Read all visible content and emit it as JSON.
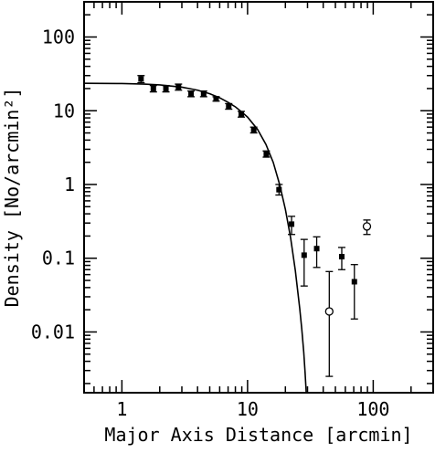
{
  "chart_data": {
    "type": "scatter",
    "title": "",
    "xlabel": "Major Axis Distance [arcmin]",
    "ylabel": "Density [No/arcmin²]",
    "xscale": "log",
    "yscale": "log",
    "xlim": [
      0.5,
      300
    ],
    "ylim": [
      0.0015,
      300
    ],
    "x_ticks": [
      1,
      10,
      100
    ],
    "x_tick_labels": [
      "1",
      "10",
      "100"
    ],
    "y_ticks": [
      100,
      10,
      1,
      0.1,
      0.01
    ],
    "y_tick_labels": [
      "100",
      "10",
      "1",
      "0.1",
      "0.01"
    ],
    "grid": false,
    "series": [
      {
        "marker": "filled-square",
        "points": [
          {
            "x": 1.42,
            "y": 27,
            "ylo": 24,
            "yhi": 30
          },
          {
            "x": 1.78,
            "y": 20,
            "ylo": 18,
            "yhi": 22
          },
          {
            "x": 2.24,
            "y": 20,
            "ylo": 18,
            "yhi": 22
          },
          {
            "x": 2.82,
            "y": 21,
            "ylo": 19,
            "yhi": 23
          },
          {
            "x": 3.55,
            "y": 17,
            "ylo": 15.5,
            "yhi": 18.5
          },
          {
            "x": 4.47,
            "y": 17,
            "ylo": 15.5,
            "yhi": 18.5
          },
          {
            "x": 5.62,
            "y": 14.5,
            "ylo": 13.5,
            "yhi": 15.5
          },
          {
            "x": 7.08,
            "y": 11.5,
            "ylo": 10.5,
            "yhi": 12.5
          },
          {
            "x": 8.91,
            "y": 9,
            "ylo": 8.2,
            "yhi": 9.8
          },
          {
            "x": 11.2,
            "y": 5.5,
            "ylo": 5.0,
            "yhi": 6.0
          },
          {
            "x": 14.1,
            "y": 2.6,
            "ylo": 2.35,
            "yhi": 2.85
          },
          {
            "x": 17.8,
            "y": 0.85,
            "ylo": 0.72,
            "yhi": 1.0
          },
          {
            "x": 22.4,
            "y": 0.29,
            "ylo": 0.21,
            "yhi": 0.37
          },
          {
            "x": 28.2,
            "y": 0.11,
            "ylo": 0.042,
            "yhi": 0.18
          },
          {
            "x": 35.5,
            "y": 0.135,
            "ylo": 0.075,
            "yhi": 0.195
          },
          {
            "x": 56.2,
            "y": 0.105,
            "ylo": 0.07,
            "yhi": 0.14
          },
          {
            "x": 70.8,
            "y": 0.048,
            "ylo": 0.015,
            "yhi": 0.082
          }
        ]
      },
      {
        "marker": "open-circle",
        "points": [
          {
            "x": 44.7,
            "y": 0.019,
            "ylo": 0.0025,
            "yhi": 0.066
          },
          {
            "x": 89.1,
            "y": 0.27,
            "ylo": 0.21,
            "yhi": 0.33
          }
        ]
      }
    ],
    "model_curve": {
      "points": [
        [
          0.5,
          23.6
        ],
        [
          1,
          23.4
        ],
        [
          1.5,
          23.0
        ],
        [
          2,
          22.4
        ],
        [
          3,
          20.9
        ],
        [
          4,
          19.0
        ],
        [
          5,
          17.0
        ],
        [
          6,
          15.0
        ],
        [
          7,
          13.0
        ],
        [
          8,
          11.3
        ],
        [
          9,
          9.6
        ],
        [
          10,
          8.2
        ],
        [
          12,
          5.6
        ],
        [
          14,
          3.5
        ],
        [
          16,
          2.0
        ],
        [
          18,
          1.0
        ],
        [
          20,
          0.46
        ],
        [
          22,
          0.19
        ],
        [
          24,
          0.068
        ],
        [
          26,
          0.021
        ],
        [
          27,
          0.011
        ],
        [
          28,
          0.0053
        ],
        [
          28.7,
          0.0028
        ],
        [
          29.3,
          0.0015
        ]
      ]
    }
  }
}
